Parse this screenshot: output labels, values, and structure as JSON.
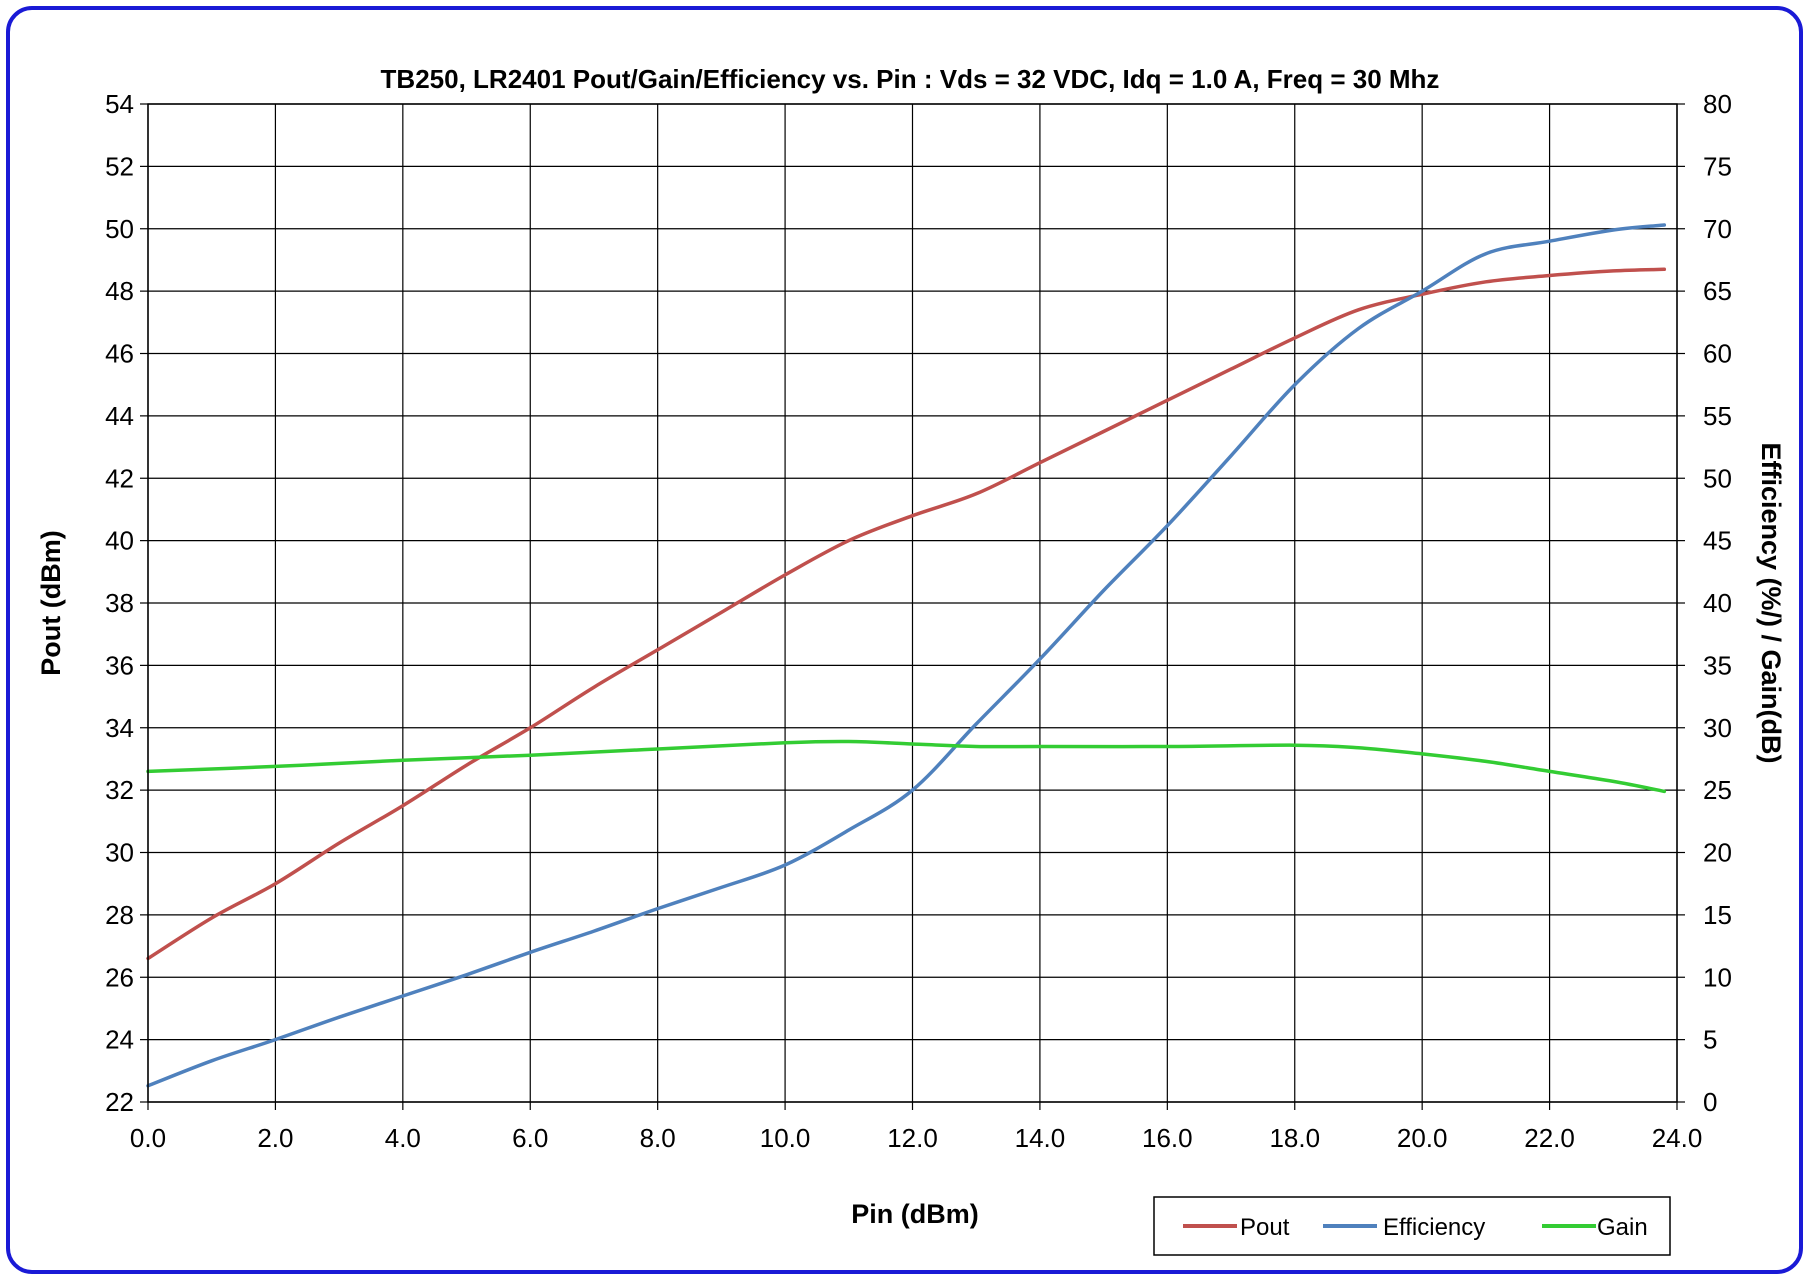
{
  "chart_data": {
    "type": "line",
    "title": "TB250, LR2401 Pout/Gain/Efficiency vs. Pin : Vds = 32 VDC, Idq = 1.0 A, Freq = 30 Mhz",
    "xlabel": "Pin (dBm)",
    "ylabel_left": "Pout (dBm)",
    "ylabel_right": "Efficiency (%/) / Gain(dB)",
    "xlim": [
      0,
      24
    ],
    "ylim_left": [
      22,
      54
    ],
    "ylim_right": [
      0,
      80
    ],
    "x_ticks": [
      "0.0",
      "2.0",
      "4.0",
      "6.0",
      "8.0",
      "10.0",
      "12.0",
      "14.0",
      "16.0",
      "18.0",
      "20.0",
      "22.0",
      "24.0"
    ],
    "y_left_ticks": [
      "22",
      "24",
      "26",
      "28",
      "30",
      "32",
      "34",
      "36",
      "38",
      "40",
      "42",
      "44",
      "46",
      "48",
      "50",
      "52",
      "54"
    ],
    "y_right_ticks": [
      "0",
      "5",
      "10",
      "15",
      "20",
      "25",
      "30",
      "35",
      "40",
      "45",
      "50",
      "55",
      "60",
      "65",
      "70",
      "75",
      "80"
    ],
    "grid": true,
    "legend_position": "bottom-right",
    "series": [
      {
        "name": "Pout",
        "axis": "left",
        "color": "#c0504d",
        "points": [
          [
            0,
            26.6
          ],
          [
            1,
            27.9
          ],
          [
            2,
            29.0
          ],
          [
            3,
            30.3
          ],
          [
            4,
            31.5
          ],
          [
            5,
            32.8
          ],
          [
            6,
            34.0
          ],
          [
            7,
            35.3
          ],
          [
            8,
            36.5
          ],
          [
            9,
            37.7
          ],
          [
            10,
            38.9
          ],
          [
            11,
            40.0
          ],
          [
            12,
            40.8
          ],
          [
            13,
            41.5
          ],
          [
            14,
            42.5
          ],
          [
            15,
            43.5
          ],
          [
            16,
            44.5
          ],
          [
            17,
            45.5
          ],
          [
            18,
            46.5
          ],
          [
            19,
            47.4
          ],
          [
            20,
            47.9
          ],
          [
            21,
            48.3
          ],
          [
            22,
            48.5
          ],
          [
            23,
            48.65
          ],
          [
            23.8,
            48.7
          ]
        ]
      },
      {
        "name": "Efficiency",
        "axis": "right",
        "color": "#4f81bd",
        "points": [
          [
            0,
            1.3
          ],
          [
            1,
            3.3
          ],
          [
            2,
            5.0
          ],
          [
            3,
            6.8
          ],
          [
            4,
            8.5
          ],
          [
            5,
            10.2
          ],
          [
            6,
            12.0
          ],
          [
            7,
            13.7
          ],
          [
            8,
            15.5
          ],
          [
            9,
            17.2
          ],
          [
            10,
            19.0
          ],
          [
            11,
            21.8
          ],
          [
            12,
            25.0
          ],
          [
            13,
            30.3
          ],
          [
            14,
            35.5
          ],
          [
            15,
            41.0
          ],
          [
            16,
            46.2
          ],
          [
            17,
            51.8
          ],
          [
            18,
            57.5
          ],
          [
            19,
            62.0
          ],
          [
            20,
            65.0
          ],
          [
            21,
            68.0
          ],
          [
            22,
            69.0
          ],
          [
            23,
            69.9
          ],
          [
            23.8,
            70.3
          ]
        ]
      },
      {
        "name": "Gain",
        "axis": "right",
        "color": "#33cc33",
        "points": [
          [
            0,
            26.5
          ],
          [
            2,
            26.9
          ],
          [
            4,
            27.4
          ],
          [
            6,
            27.8
          ],
          [
            8,
            28.3
          ],
          [
            10,
            28.8
          ],
          [
            11,
            28.9
          ],
          [
            12,
            28.7
          ],
          [
            13,
            28.5
          ],
          [
            14,
            28.5
          ],
          [
            16,
            28.5
          ],
          [
            18,
            28.6
          ],
          [
            19,
            28.4
          ],
          [
            20,
            27.9
          ],
          [
            21,
            27.3
          ],
          [
            22,
            26.5
          ],
          [
            23,
            25.7
          ],
          [
            23.8,
            24.9
          ]
        ]
      }
    ]
  }
}
